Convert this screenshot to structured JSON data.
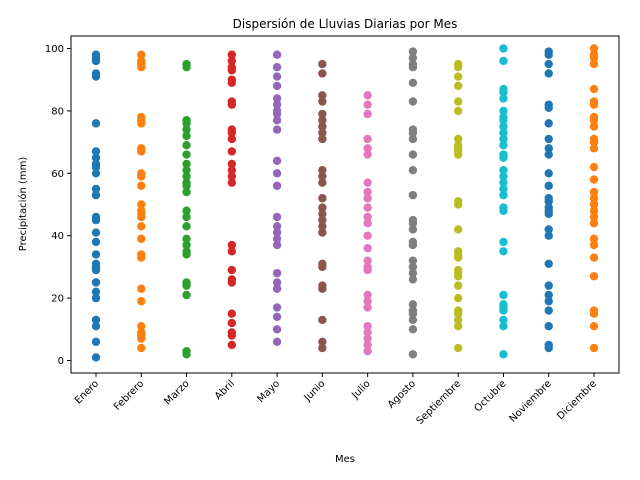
{
  "chart_data": {
    "type": "scatter",
    "title": "Dispersión de Lluvias Diarias por Mes",
    "xlabel": "Mes",
    "ylabel": "Precipitación (mm)",
    "ylim": [
      -4,
      104
    ],
    "yticks": [
      0,
      20,
      40,
      60,
      80,
      100
    ],
    "grid": false,
    "categories": [
      "Enero",
      "Febrero",
      "Marzo",
      "Abril",
      "Mayo",
      "Junio",
      "Julio",
      "Agosto",
      "Septiembre",
      "Octubre",
      "Noviembre",
      "Diciembre"
    ],
    "colors": [
      "#1f77b4",
      "#ff7f0e",
      "#2ca02c",
      "#d62728",
      "#9467bd",
      "#8c564b",
      "#e377c2",
      "#7f7f7f",
      "#bcbd22",
      "#17becf",
      "#1f77b4",
      "#ff7f0e"
    ],
    "series": [
      {
        "category": "Enero",
        "values": [
          98,
          97,
          96,
          92,
          91,
          76,
          67,
          65,
          63,
          62,
          60,
          55,
          53,
          46,
          45,
          41,
          38,
          34,
          31,
          30,
          29,
          25,
          22,
          20,
          13,
          11,
          6,
          1
        ]
      },
      {
        "category": "Febrero",
        "values": [
          98,
          96,
          95,
          94,
          78,
          77,
          76,
          68,
          67,
          60,
          59,
          56,
          50,
          48,
          47,
          46,
          43,
          39,
          34,
          33,
          23,
          19,
          11,
          9,
          8,
          7,
          4
        ]
      },
      {
        "category": "Marzo",
        "values": [
          95,
          94,
          77,
          76,
          74,
          72,
          69,
          66,
          63,
          61,
          59,
          57,
          56,
          54,
          48,
          46,
          43,
          39,
          37,
          35,
          34,
          25,
          24,
          21,
          3,
          2
        ]
      },
      {
        "category": "Abril",
        "values": [
          98,
          96,
          94,
          93,
          90,
          89,
          83,
          82,
          74,
          73,
          71,
          67,
          63,
          61,
          59,
          57,
          37,
          35,
          29,
          26,
          25,
          15,
          12,
          9,
          8,
          5
        ]
      },
      {
        "category": "Mayo",
        "values": [
          98,
          94,
          91,
          88,
          84,
          82,
          80,
          79,
          77,
          74,
          64,
          60,
          56,
          46,
          43,
          41,
          39,
          37,
          28,
          25,
          23,
          17,
          14,
          10,
          6
        ]
      },
      {
        "category": "Junio",
        "values": [
          95,
          92,
          85,
          83,
          79,
          77,
          75,
          73,
          71,
          61,
          59,
          57,
          52,
          49,
          47,
          45,
          43,
          41,
          31,
          30,
          24,
          23,
          13,
          6,
          4
        ]
      },
      {
        "category": "Julio",
        "values": [
          85,
          82,
          79,
          71,
          68,
          66,
          57,
          54,
          52,
          49,
          46,
          44,
          40,
          36,
          32,
          30,
          29,
          21,
          19,
          17,
          11,
          9,
          7,
          5,
          3
        ]
      },
      {
        "category": "Agosto",
        "values": [
          99,
          97,
          95,
          94,
          89,
          83,
          74,
          73,
          71,
          66,
          61,
          53,
          45,
          44,
          42,
          38,
          37,
          32,
          30,
          28,
          26,
          18,
          16,
          15,
          13,
          10,
          2
        ]
      },
      {
        "category": "Septiembre",
        "values": [
          95,
          94,
          91,
          88,
          83,
          80,
          71,
          69,
          68,
          67,
          66,
          51,
          50,
          42,
          35,
          34,
          33,
          29,
          28,
          27,
          24,
          20,
          16,
          15,
          13,
          11,
          4
        ]
      },
      {
        "category": "Octubre",
        "values": [
          100,
          96,
          87,
          86,
          84,
          80,
          78,
          77,
          75,
          73,
          71,
          69,
          66,
          65,
          61,
          59,
          57,
          55,
          53,
          49,
          48,
          38,
          35,
          21,
          18,
          17,
          16,
          13,
          11,
          2
        ]
      },
      {
        "category": "Noviembre",
        "values": [
          99,
          98,
          95,
          92,
          82,
          81,
          76,
          71,
          68,
          66,
          60,
          56,
          52,
          51,
          49,
          48,
          47,
          42,
          40,
          31,
          24,
          21,
          19,
          16,
          11,
          5,
          4
        ]
      },
      {
        "category": "Diciembre",
        "values": [
          100,
          98,
          97,
          95,
          87,
          83,
          82,
          78,
          77,
          75,
          71,
          70,
          68,
          62,
          58,
          54,
          52,
          50,
          48,
          46,
          44,
          39,
          37,
          33,
          27,
          16,
          15,
          11,
          4
        ]
      }
    ]
  }
}
